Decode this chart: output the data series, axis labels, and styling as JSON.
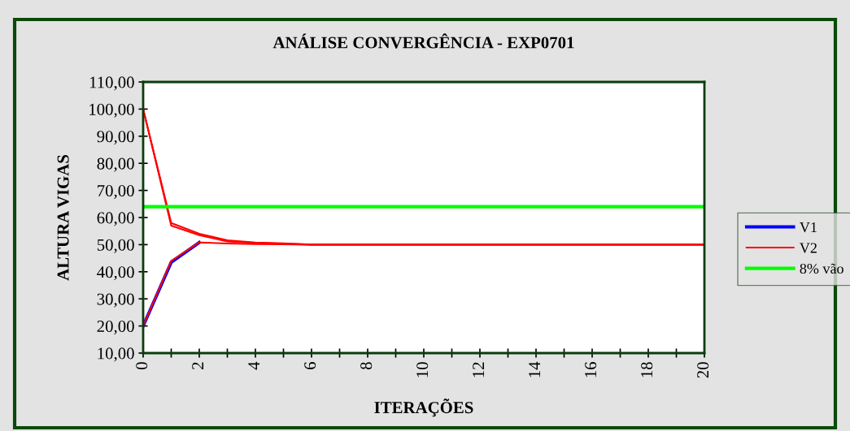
{
  "chart_data": {
    "type": "line",
    "title": "ANÁLISE CONVERGÊNCIA - EXP0701",
    "xlabel": "ITERAÇÕES",
    "ylabel": "ALTURA VIGAS",
    "x": [
      0,
      1,
      2,
      3,
      4,
      5,
      6,
      7,
      8,
      9,
      10,
      11,
      12,
      13,
      14,
      15,
      16,
      17,
      18,
      19,
      20
    ],
    "series": [
      {
        "name": "V1",
        "color": "#0000ff",
        "values": [
          20,
          43.5,
          50.8,
          null,
          null,
          null,
          null,
          null,
          null,
          null,
          null,
          null,
          null,
          null,
          null,
          null,
          null,
          null,
          null,
          null,
          null
        ]
      },
      {
        "name": "V2",
        "color": "#ff0000",
        "values": [
          20,
          44,
          50.8,
          50.4,
          50.2,
          50.1,
          50,
          50,
          50,
          50,
          50,
          50,
          50,
          50,
          50,
          50,
          50,
          50,
          50,
          50,
          50
        ]
      },
      {
        "color": "#ff0000",
        "values": [
          100,
          57,
          53.5,
          51.2,
          50.6,
          50.3,
          50,
          50,
          50,
          50,
          50,
          50,
          50,
          50,
          50,
          50,
          50,
          50,
          50,
          50,
          50
        ]
      },
      {
        "color": "#ff0000",
        "values": [
          100,
          58,
          54,
          51.6,
          50.8,
          50.5,
          50,
          50,
          50,
          50,
          50,
          50,
          50,
          50,
          50,
          50,
          50,
          50,
          50,
          50,
          50
        ]
      }
    ],
    "ref_lines": [
      {
        "axis": "y",
        "value": 64,
        "label": "8% vão",
        "color": "#00ff00"
      }
    ],
    "xlim": [
      0,
      20
    ],
    "xticks": [
      0,
      2,
      4,
      6,
      8,
      10,
      12,
      14,
      16,
      18,
      20
    ],
    "ylim": [
      10,
      110
    ],
    "yticks": [
      {
        "value": 10,
        "label": "10,00"
      },
      {
        "value": 20,
        "label": "20,00"
      },
      {
        "value": 30,
        "label": "30,00"
      },
      {
        "value": 40,
        "label": "40,00"
      },
      {
        "value": 50,
        "label": "50,00"
      },
      {
        "value": 60,
        "label": "60,00"
      },
      {
        "value": 70,
        "label": "70,00"
      },
      {
        "value": 80,
        "label": "80,00"
      },
      {
        "value": 90,
        "label": "90,00"
      },
      {
        "value": 100,
        "label": "100,00"
      },
      {
        "value": 110,
        "label": "110,00"
      }
    ],
    "grid": false,
    "legend": "right",
    "marker": "none",
    "line_style": "solid"
  }
}
